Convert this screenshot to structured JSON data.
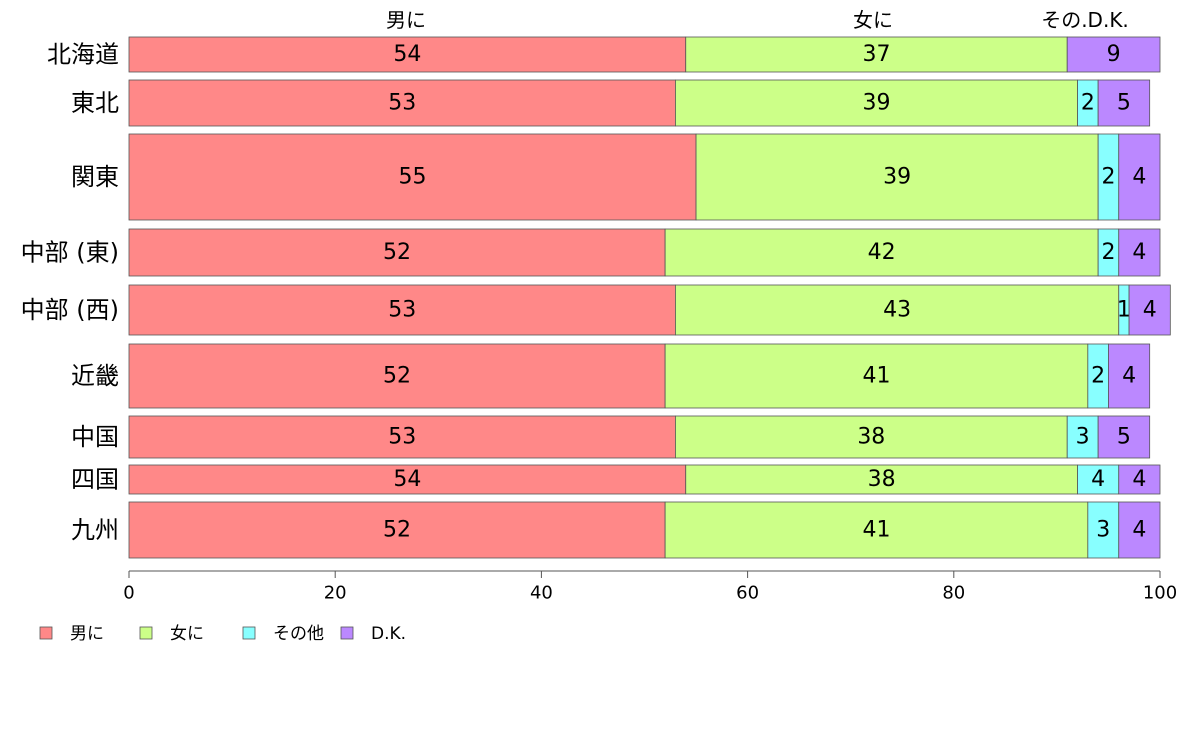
{
  "chart_data": {
    "type": "bar",
    "orientation": "horizontal",
    "stacked": true,
    "categories": [
      "北海道",
      "東北",
      "関東",
      "中部 (東)",
      "中部 (西)",
      "近畿",
      "中国",
      "四国",
      "九州"
    ],
    "series": [
      {
        "name": "男に",
        "color": "#ff8888",
        "values": [
          54,
          53,
          55,
          52,
          53,
          52,
          53,
          54,
          52
        ],
        "display": [
          "54",
          "53",
          "55",
          "52",
          "53",
          "52",
          "53",
          "54",
          "52"
        ]
      },
      {
        "name": "女に",
        "color": "#ccff88",
        "values": [
          37,
          39,
          39,
          42,
          43,
          41,
          38,
          38,
          41
        ],
        "display": [
          "37",
          "39",
          "39",
          "42",
          "43",
          "41",
          "38",
          "38",
          "41"
        ]
      },
      {
        "name": "その他",
        "color": "#88ffff",
        "values": [
          0,
          2,
          2,
          2,
          1,
          2,
          3,
          4,
          3
        ],
        "display": [
          "",
          "2",
          "2",
          "2",
          "1",
          "2",
          "3",
          "4",
          "3"
        ]
      },
      {
        "name": "D.K.",
        "color": "#bb88ff",
        "values": [
          9,
          5,
          4,
          4,
          4,
          4,
          5,
          4,
          4
        ],
        "display": [
          "9",
          "5",
          "4",
          "4",
          "4",
          "4",
          "5",
          "4",
          "4"
        ]
      }
    ],
    "top_labels": [
      "男に",
      "女に",
      "その.D.K."
    ],
    "xlim": [
      0,
      100
    ],
    "x_ticks": [
      "0",
      "20",
      "40",
      "60",
      "80",
      "100"
    ],
    "grid": false,
    "legend_position": "bottom-left"
  }
}
